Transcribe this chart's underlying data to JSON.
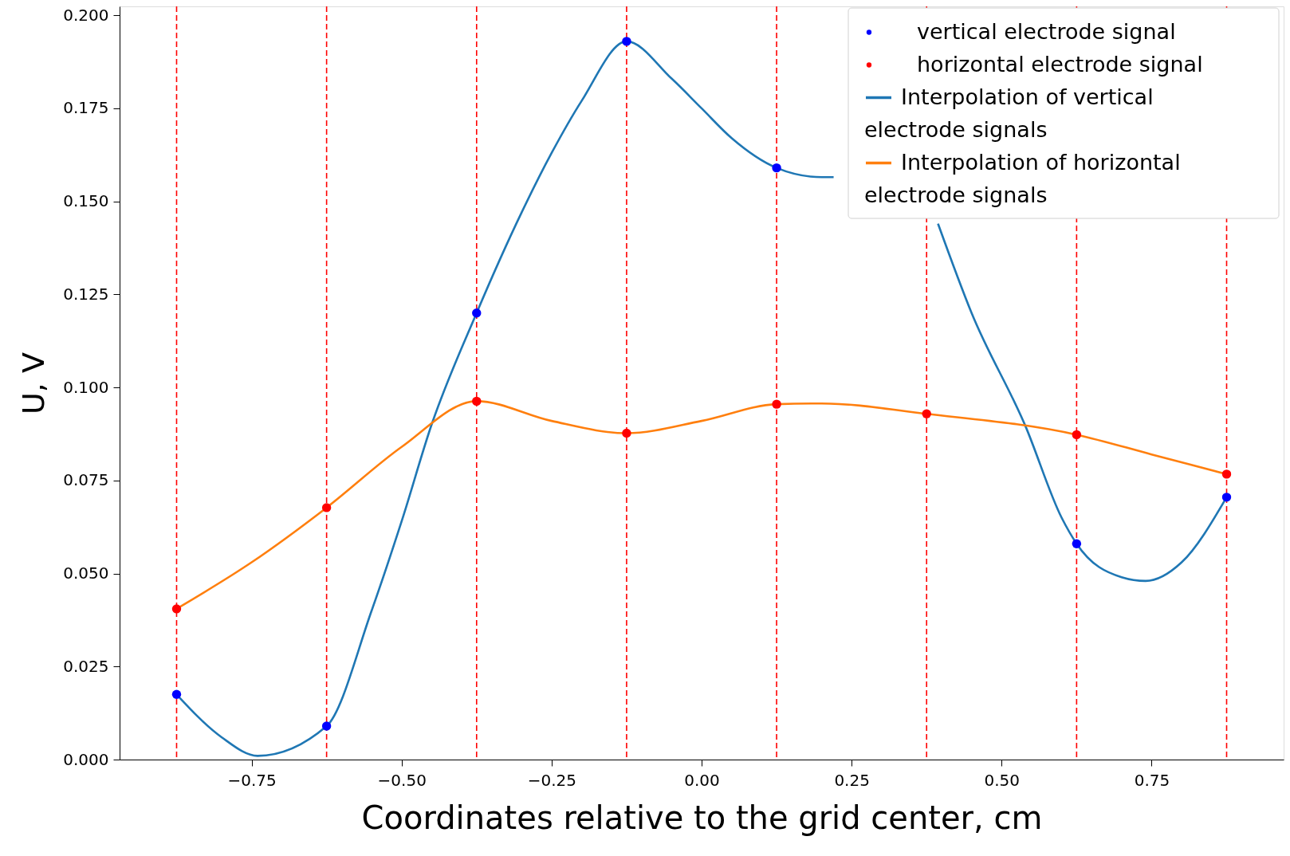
{
  "chart_data": {
    "type": "line",
    "xlabel": "Coordinates relative to the grid center, cm",
    "ylabel": "U, V",
    "xlim": [
      -0.97,
      0.97
    ],
    "ylim": [
      0,
      0.2024
    ],
    "xticks": [
      {
        "value": -0.75,
        "label": "−0.75"
      },
      {
        "value": -0.5,
        "label": "−0.50"
      },
      {
        "value": -0.25,
        "label": "−0.25"
      },
      {
        "value": 0,
        "label": "0.00"
      },
      {
        "value": 0.25,
        "label": "0.25"
      },
      {
        "value": 0.5,
        "label": "0.50"
      },
      {
        "value": 0.75,
        "label": "0.75"
      }
    ],
    "yticks": [
      {
        "value": 0,
        "label": "0.000"
      },
      {
        "value": 0.025,
        "label": "0.025"
      },
      {
        "value": 0.05,
        "label": "0.050"
      },
      {
        "value": 0.075,
        "label": "0.075"
      },
      {
        "value": 0.1,
        "label": "0.100"
      },
      {
        "value": 0.125,
        "label": "0.125"
      },
      {
        "value": 0.15,
        "label": "0.150"
      },
      {
        "value": 0.175,
        "label": "0.175"
      },
      {
        "value": 0.2,
        "label": "0.200"
      }
    ],
    "grid": false,
    "legend": "top right",
    "series": [
      {
        "name": "vertical electrode signal",
        "type": "scatter",
        "marker": "circle",
        "color": "#0000ff",
        "x": [
          -0.875,
          -0.625,
          -0.375,
          -0.125,
          0.125,
          0.375,
          0.625,
          0.875
        ],
        "values": [
          0.0175,
          0.009,
          0.12,
          0.193,
          0.159,
          null,
          0.058,
          0.0705
        ]
      },
      {
        "name": "horizontal electrode signal",
        "type": "scatter",
        "marker": "circle",
        "color": "#ff0000",
        "x": [
          -0.875,
          -0.625,
          -0.375,
          -0.125,
          0.125,
          0.375,
          0.625,
          0.875
        ],
        "values": [
          0.0405,
          0.0677,
          0.0963,
          0.0877,
          0.0955,
          0.0929,
          0.0873,
          0.0767
        ]
      },
      {
        "name": "Interpolation of vertical electrode signals",
        "type": "line",
        "marker": "none",
        "line_style": "solid",
        "color": "#1f77b4",
        "x": [
          -0.875,
          -0.8,
          -0.74,
          -0.625,
          -0.55,
          -0.5,
          -0.45,
          -0.375,
          -0.3,
          -0.25,
          -0.2,
          -0.125,
          -0.05,
          0.0,
          0.05,
          0.125,
          0.2,
          0.22,
          0.3,
          0.394,
          0.45,
          0.54,
          0.6,
          0.625,
          0.7,
          0.74,
          0.8,
          0.875
        ],
        "values": [
          0.0175,
          0.006,
          0.001,
          0.009,
          0.04,
          0.064,
          0.09,
          0.12,
          0.147,
          0.163,
          0.177,
          0.193,
          0.183,
          0.175,
          0.167,
          0.159,
          0.1565,
          0.1565,
          null,
          0.144,
          0.12,
          0.0895,
          0.065,
          0.058,
          0.049,
          0.048,
          0.053,
          0.0705
        ]
      },
      {
        "name": "Interpolation of horizontal electrode signals",
        "type": "line",
        "marker": "none",
        "line_style": "solid",
        "color": "#ff7f0e",
        "x": [
          -0.875,
          -0.75,
          -0.625,
          -0.5,
          -0.375,
          -0.25,
          -0.125,
          0.0,
          0.125,
          0.2,
          0.375,
          0.625,
          0.75,
          0.875
        ],
        "values": [
          0.0405,
          0.053,
          0.0677,
          0.084,
          0.0963,
          0.091,
          0.0877,
          0.091,
          0.0955,
          0.0957,
          0.0929,
          0.0873,
          0.082,
          0.0767
        ]
      }
    ],
    "ref_lines": [
      {
        "axis": "x",
        "value": -0.875,
        "color": "#ff0000",
        "line_style": "dashed"
      },
      {
        "axis": "x",
        "value": -0.625,
        "color": "#ff0000",
        "line_style": "dashed"
      },
      {
        "axis": "x",
        "value": -0.375,
        "color": "#ff0000",
        "line_style": "dashed"
      },
      {
        "axis": "x",
        "value": -0.125,
        "color": "#ff0000",
        "line_style": "dashed"
      },
      {
        "axis": "x",
        "value": 0.125,
        "color": "#ff0000",
        "line_style": "dashed"
      },
      {
        "axis": "x",
        "value": 0.375,
        "color": "#ff0000",
        "line_style": "dashed"
      },
      {
        "axis": "x",
        "value": 0.625,
        "color": "#ff0000",
        "line_style": "dashed"
      },
      {
        "axis": "x",
        "value": 0.875,
        "color": "#ff0000",
        "line_style": "dashed"
      }
    ]
  }
}
